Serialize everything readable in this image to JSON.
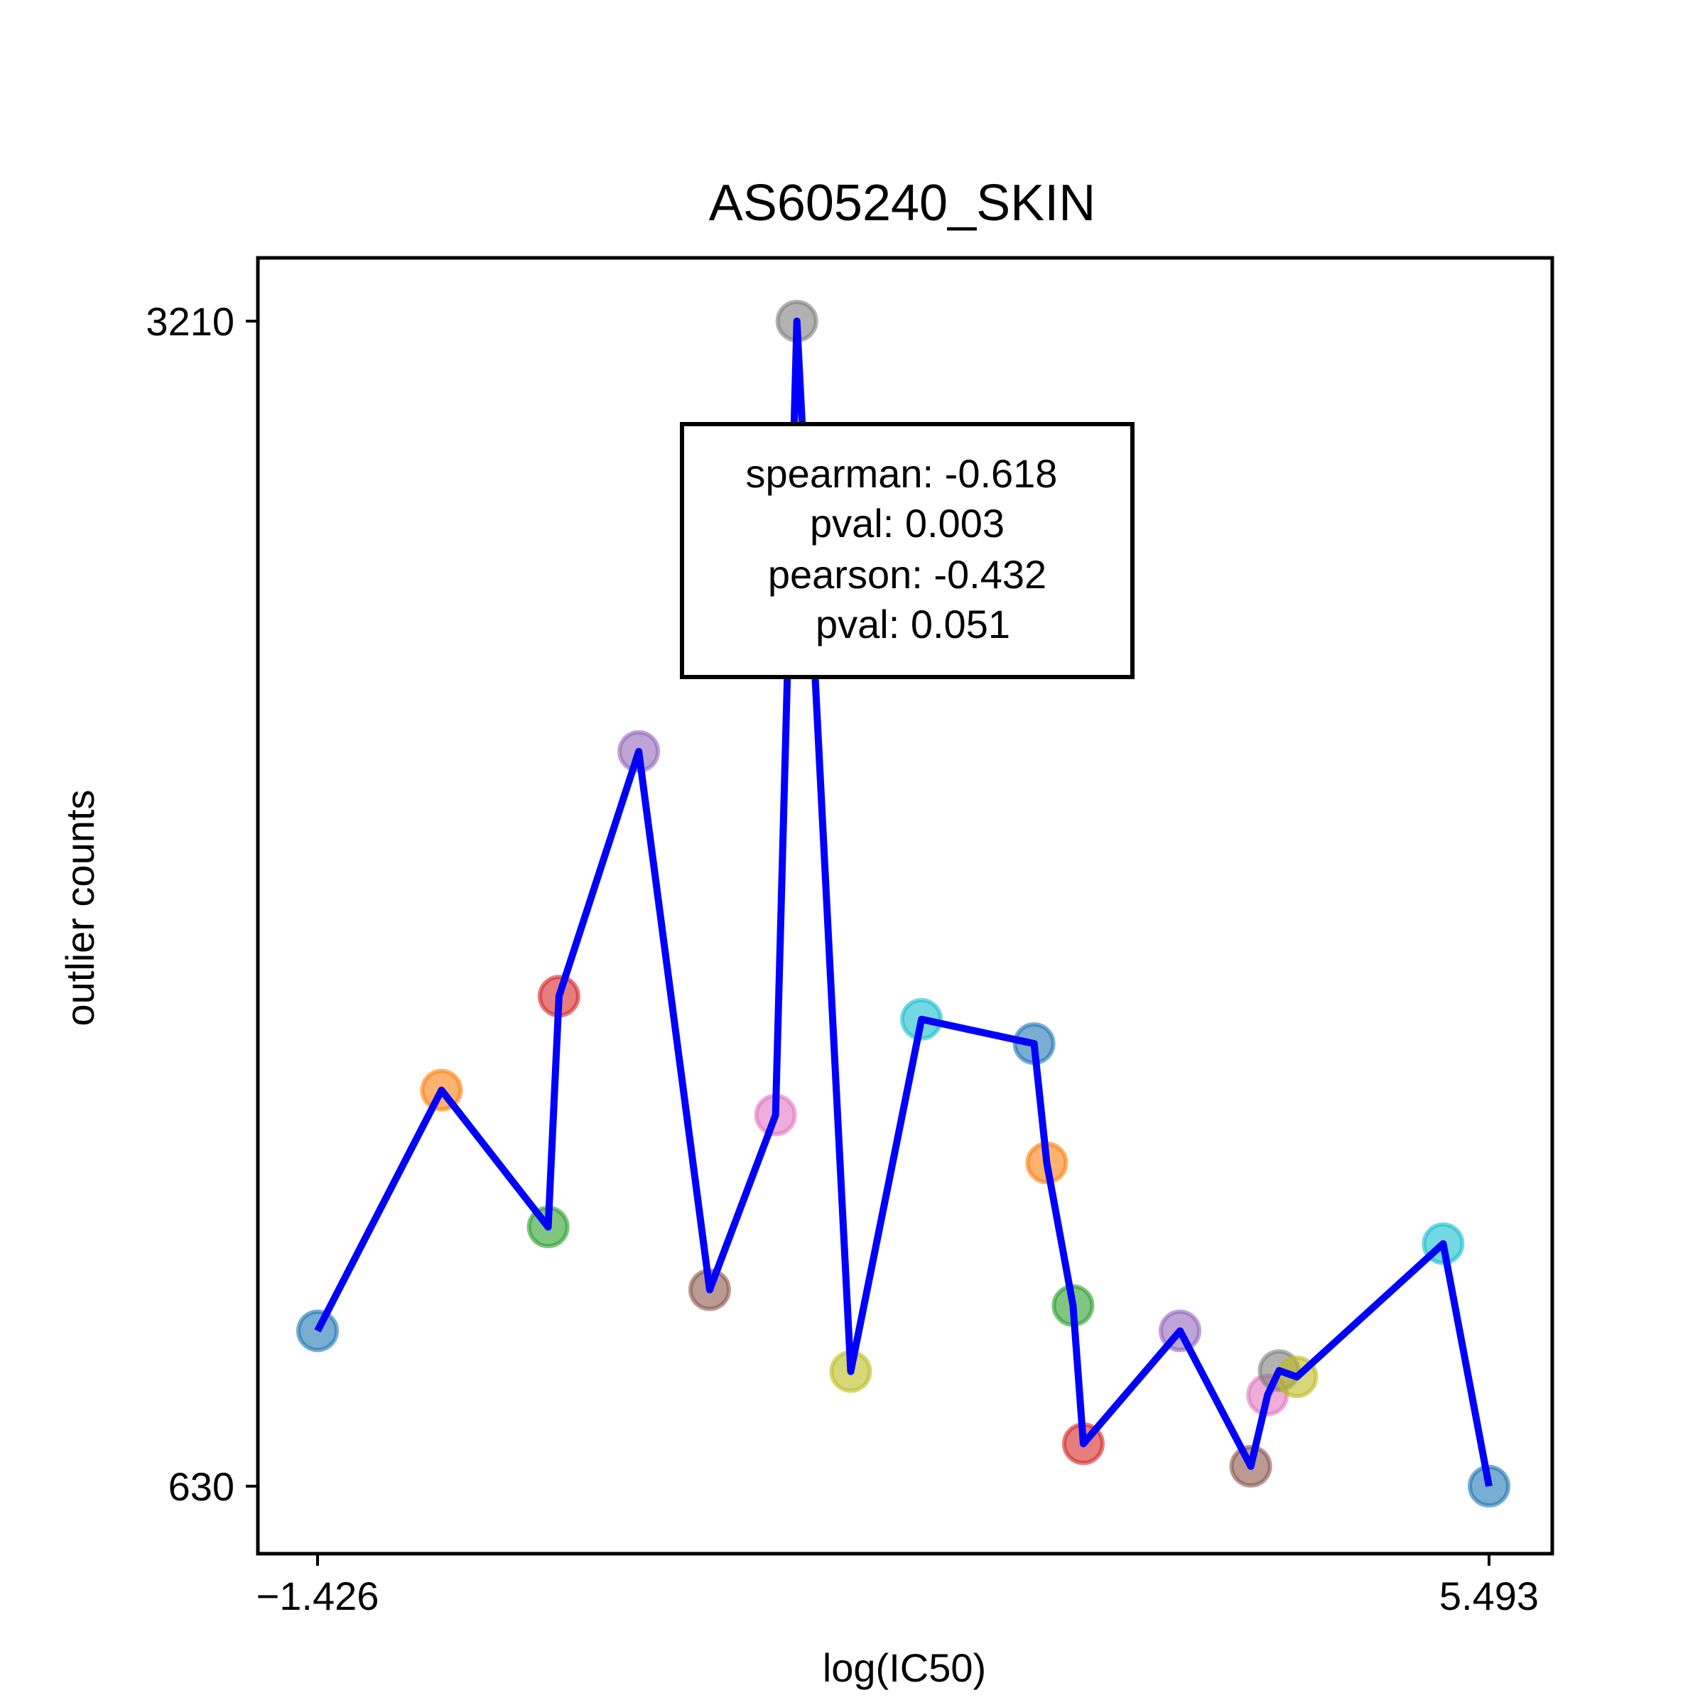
{
  "chart_data": {
    "type": "line",
    "title": "AS605240_SKIN",
    "xlabel": "log(IC50)",
    "ylabel": "outlier counts",
    "xlim": [
      -1.426,
      5.493
    ],
    "ylim": [
      630,
      3210
    ],
    "xtick_labels": [
      "−1.426",
      "5.493"
    ],
    "ytick_labels": [
      "3210",
      "630"
    ],
    "grid": false,
    "line_color": "#0000ff",
    "point_colors": [
      "#1f77b4",
      "#ff7f0e",
      "#2ca02c",
      "#d62728",
      "#9467bd",
      "#8c564b",
      "#e377c2",
      "#7f7f7f",
      "#bcbd22",
      "#17becf"
    ],
    "points": [
      {
        "x": -1.426,
        "y": 974
      },
      {
        "x": -0.694,
        "y": 1507
      },
      {
        "x": -0.064,
        "y": 1204
      },
      {
        "x": 0.0,
        "y": 1715
      },
      {
        "x": 0.471,
        "y": 2257
      },
      {
        "x": 0.89,
        "y": 1065
      },
      {
        "x": 1.279,
        "y": 1452
      },
      {
        "x": 1.405,
        "y": 3210
      },
      {
        "x": 1.723,
        "y": 884
      },
      {
        "x": 2.141,
        "y": 1664
      },
      {
        "x": 2.806,
        "y": 1610
      },
      {
        "x": 2.881,
        "y": 1346
      },
      {
        "x": 3.036,
        "y": 1030
      },
      {
        "x": 3.097,
        "y": 724
      },
      {
        "x": 3.668,
        "y": 974
      },
      {
        "x": 4.086,
        "y": 674
      },
      {
        "x": 4.185,
        "y": 832
      },
      {
        "x": 4.253,
        "y": 886
      },
      {
        "x": 4.358,
        "y": 872
      },
      {
        "x": 5.222,
        "y": 1167
      },
      {
        "x": 5.493,
        "y": 630
      }
    ],
    "annotation": {
      "lines": [
        "spearman: -0.618",
        "pval: 0.003",
        "pearson: -0.432",
        "pval: 0.051"
      ],
      "location": "upper-center"
    }
  }
}
